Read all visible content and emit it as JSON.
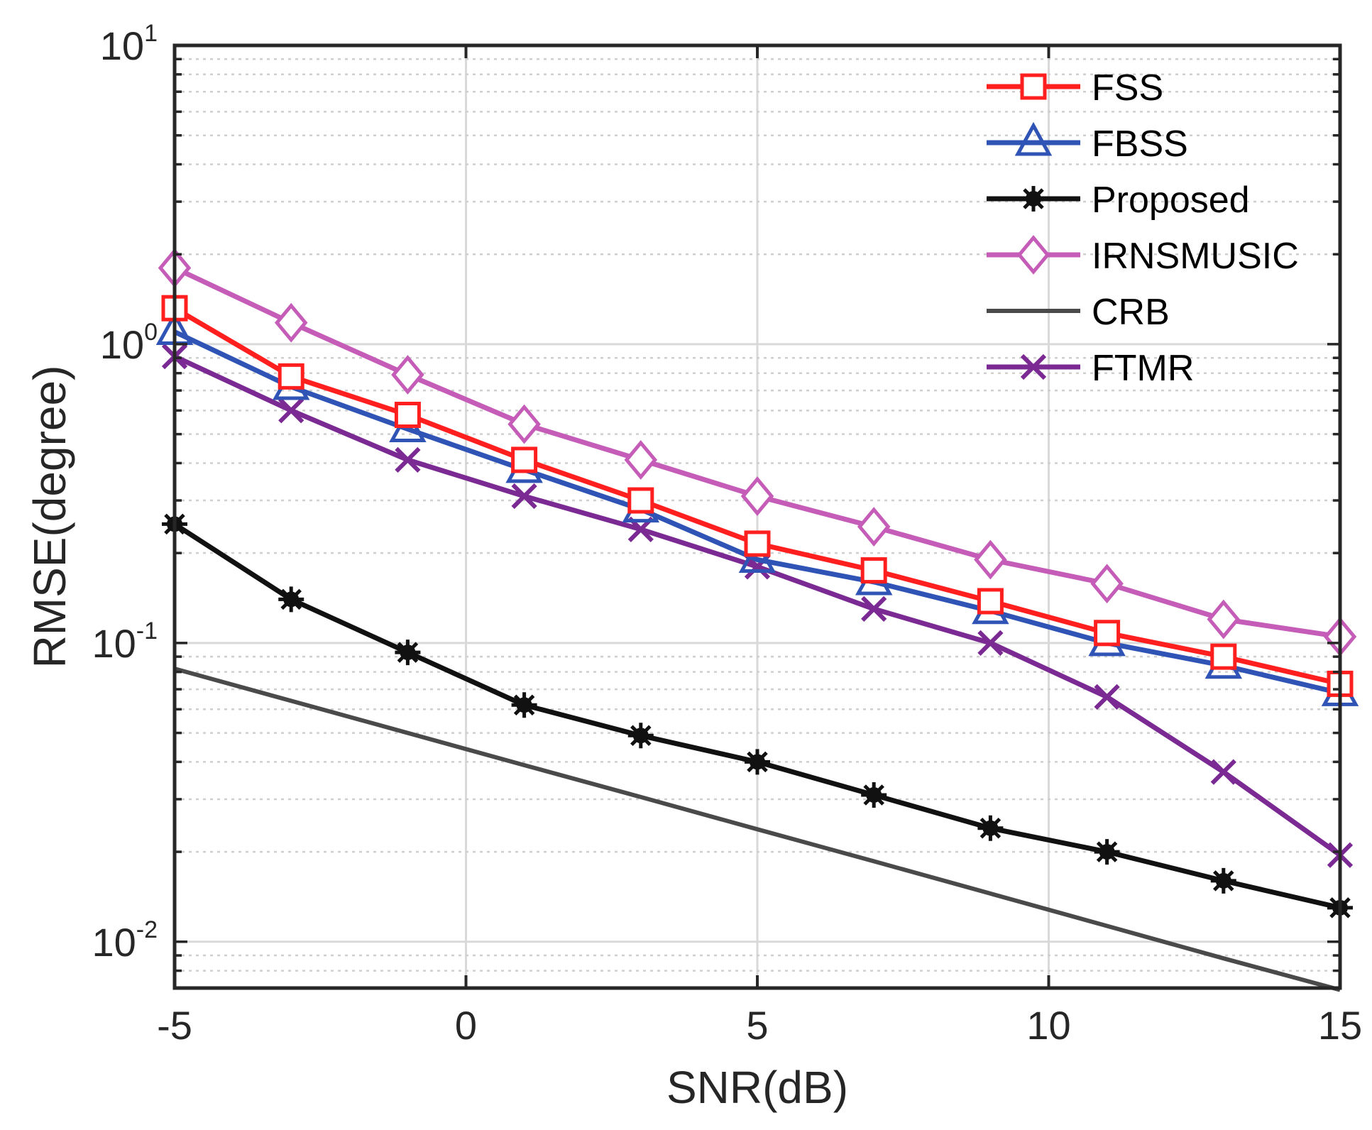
{
  "chart_data": {
    "type": "line",
    "xlabel": "SNR(dB)",
    "ylabel": "RMSE(degree)",
    "xlim": [
      -5,
      15
    ],
    "ylim": [
      0.007,
      10
    ],
    "yscale": "log",
    "grid": true,
    "legend_position": "top-right",
    "x_ticks": [
      "-5",
      "0",
      "5",
      "10",
      "15"
    ],
    "y_ticks": [
      {
        "base": "10",
        "exp": "-2",
        "value": 0.01
      },
      {
        "base": "10",
        "exp": "-1",
        "value": 0.1
      },
      {
        "base": "10",
        "exp": "0",
        "value": 1
      },
      {
        "base": "10",
        "exp": "1",
        "value": 10
      }
    ],
    "x": [
      -5,
      -3,
      -1,
      1,
      3,
      5,
      7,
      9,
      11,
      13,
      15
    ],
    "series": [
      {
        "name": "FSS",
        "color": "#ff1f1f",
        "marker": "square",
        "values": [
          1.32,
          0.78,
          0.58,
          0.41,
          0.3,
          0.215,
          0.175,
          0.138,
          0.108,
          0.09,
          0.073
        ]
      },
      {
        "name": "FBSS",
        "color": "#2f54b5",
        "marker": "triangle",
        "values": [
          1.1,
          0.72,
          0.52,
          0.38,
          0.28,
          0.19,
          0.16,
          0.128,
          0.1,
          0.084,
          0.068
        ]
      },
      {
        "name": "Proposed",
        "color": "#111111",
        "marker": "asterisk",
        "values": [
          0.25,
          0.14,
          0.093,
          0.062,
          0.049,
          0.04,
          0.031,
          0.024,
          0.02,
          0.016,
          0.013
        ]
      },
      {
        "name": "IRNSMUSIC",
        "color": "#c45cb8",
        "marker": "diamond",
        "values": [
          1.8,
          1.18,
          0.79,
          0.54,
          0.41,
          0.31,
          0.245,
          0.19,
          0.158,
          0.12,
          0.105
        ]
      },
      {
        "name": "CRB",
        "color": "#4a4a4a",
        "marker": "none",
        "values": [
          0.082,
          0.064,
          0.05,
          0.039,
          0.0305,
          0.0238,
          0.0186,
          0.0145,
          0.0113,
          0.0088,
          0.0069
        ]
      },
      {
        "name": "FTMR",
        "color": "#7a2a92",
        "marker": "x",
        "values": [
          0.91,
          0.6,
          0.41,
          0.31,
          0.24,
          0.18,
          0.13,
          0.1,
          0.066,
          0.037,
          0.0195
        ]
      }
    ]
  }
}
